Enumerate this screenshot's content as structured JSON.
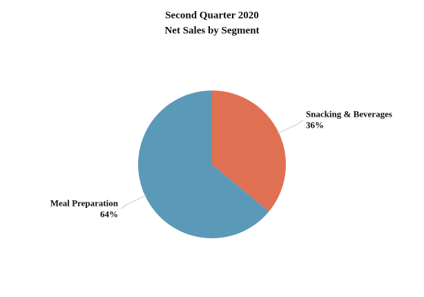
{
  "chart_data": {
    "type": "pie",
    "title": [
      "Second Quarter 2020",
      "Net Sales by Segment"
    ],
    "categories": [
      "Snacking & Beverages",
      "Meal Preparation"
    ],
    "values": [
      36,
      64
    ],
    "value_labels": [
      "36%",
      "64%"
    ],
    "colors": [
      "#e07052",
      "#5b99b8"
    ]
  }
}
